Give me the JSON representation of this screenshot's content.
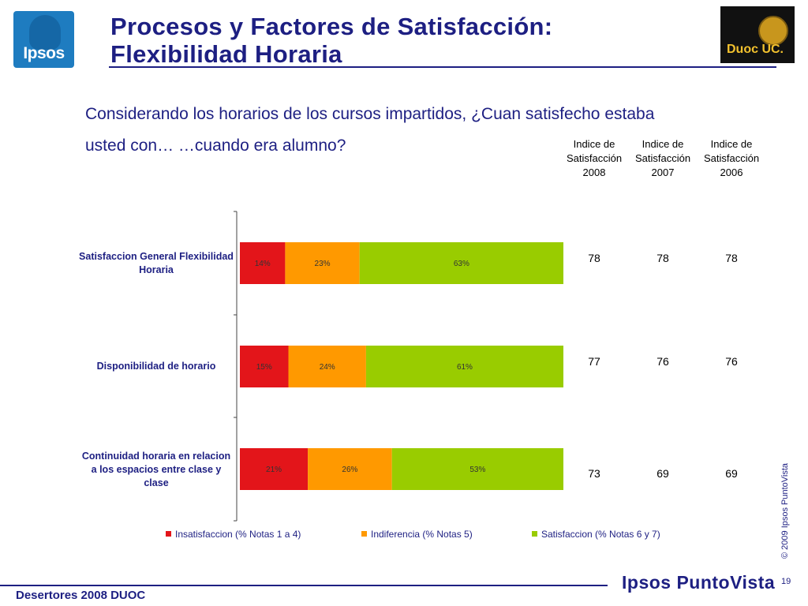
{
  "header": {
    "logo_text": "Ipsos",
    "title_line1": "Procesos y Factores de Satisfacción:",
    "title_line2": "Flexibilidad Horaria",
    "partner_logo_text": "Duoc UC."
  },
  "question": "Considerando los horarios de los cursos impartidos, ¿Cuan satisfecho estaba usted con… …cuando era alumno?",
  "index_table": {
    "headers": [
      "Indice de Satisfacción 2008",
      "Indice de Satisfacción 2007",
      "Indice de Satisfacción 2006"
    ],
    "rows": [
      [
        "78",
        "78",
        "78"
      ],
      [
        "77",
        "76",
        "76"
      ],
      [
        "73",
        "69",
        "69"
      ]
    ]
  },
  "chart_data": {
    "type": "bar",
    "orientation": "horizontal",
    "stacked": true,
    "percent_stacked": true,
    "categories": [
      "Satisfaccion General Flexibilidad Horaria",
      "Disponibilidad de horario",
      "Continuidad horaria en relacion a los espacios entre clase y clase"
    ],
    "series": [
      {
        "name": "Insatisfaccion (% Notas 1 a 4)",
        "color": "#e3151a",
        "values": [
          14,
          15,
          21
        ],
        "labels": [
          "14%",
          "15%",
          "21%"
        ]
      },
      {
        "name": "Indiferencia (% Notas 5)",
        "color": "#ff9900",
        "values": [
          23,
          24,
          26
        ],
        "labels": [
          "23%",
          "24%",
          "26%"
        ]
      },
      {
        "name": "Satisfaccion (% Notas 6 y 7)",
        "color": "#99cc00",
        "values": [
          63,
          61,
          53
        ],
        "labels": [
          "63%",
          "61%",
          "53%"
        ]
      }
    ],
    "xlim": [
      0,
      100
    ],
    "legend_position": "bottom",
    "grid": false
  },
  "footer": {
    "copyright": "© 2009 Ipsos PuntoVista",
    "left_text": "Desertores 2008 DUOC",
    "brand": "Ipsos PuntoVista",
    "page_number": "19"
  }
}
